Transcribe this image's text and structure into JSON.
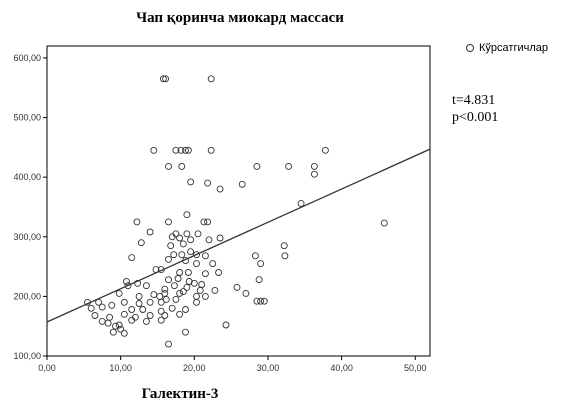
{
  "chart_data": {
    "type": "scatter",
    "title": "Чап қоринча миокард массаси",
    "xlabel": "Галектин-3",
    "ylabel": "",
    "xlim": [
      0,
      52
    ],
    "ylim": [
      100,
      620
    ],
    "x_ticks": [
      "0,00",
      "10,00",
      "20,00",
      "30,00",
      "40,00",
      "50,00"
    ],
    "y_ticks": [
      "100,00",
      "200,00",
      "300,00",
      "400,00",
      "500,00",
      "600,00"
    ],
    "grid": false,
    "legend_position": "top-right",
    "series": [
      {
        "name": "Кўрсатгичлар",
        "points": [
          [
            15.8,
            565
          ],
          [
            16.1,
            565
          ],
          [
            22.3,
            565
          ],
          [
            14.5,
            445
          ],
          [
            17.5,
            445
          ],
          [
            18.2,
            445
          ],
          [
            18.8,
            445
          ],
          [
            19.2,
            445
          ],
          [
            22.3,
            445
          ],
          [
            37.8,
            445
          ],
          [
            16.5,
            418
          ],
          [
            18.3,
            418
          ],
          [
            28.5,
            418
          ],
          [
            32.8,
            418
          ],
          [
            36.3,
            418
          ],
          [
            36.3,
            405
          ],
          [
            19.5,
            392
          ],
          [
            21.8,
            390
          ],
          [
            26.5,
            388
          ],
          [
            23.5,
            380
          ],
          [
            34.5,
            356
          ],
          [
            19.0,
            337
          ],
          [
            12.2,
            325
          ],
          [
            16.5,
            325
          ],
          [
            21.3,
            325
          ],
          [
            21.8,
            325
          ],
          [
            45.8,
            323
          ],
          [
            14.0,
            308
          ],
          [
            17.5,
            305
          ],
          [
            19.0,
            305
          ],
          [
            20.5,
            305
          ],
          [
            12.8,
            290
          ],
          [
            17.0,
            300
          ],
          [
            18.0,
            298
          ],
          [
            19.5,
            295
          ],
          [
            22.0,
            295
          ],
          [
            23.5,
            298
          ],
          [
            16.8,
            285
          ],
          [
            18.5,
            288
          ],
          [
            32.2,
            285
          ],
          [
            17.2,
            270
          ],
          [
            18.3,
            270
          ],
          [
            19.5,
            275
          ],
          [
            20.3,
            270
          ],
          [
            21.5,
            268
          ],
          [
            28.3,
            268
          ],
          [
            32.3,
            268
          ],
          [
            11.5,
            265
          ],
          [
            16.5,
            262
          ],
          [
            18.8,
            260
          ],
          [
            20.3,
            255
          ],
          [
            22.5,
            255
          ],
          [
            29.0,
            255
          ],
          [
            14.8,
            245
          ],
          [
            15.5,
            245
          ],
          [
            18.0,
            240
          ],
          [
            19.2,
            240
          ],
          [
            21.5,
            238
          ],
          [
            23.3,
            240
          ],
          [
            10.8,
            225
          ],
          [
            12.3,
            222
          ],
          [
            16.5,
            228
          ],
          [
            17.8,
            230
          ],
          [
            19.3,
            225
          ],
          [
            20.0,
            222
          ],
          [
            21.0,
            220
          ],
          [
            28.8,
            228
          ],
          [
            11.0,
            218
          ],
          [
            13.5,
            218
          ],
          [
            16.0,
            212
          ],
          [
            17.3,
            218
          ],
          [
            19.0,
            215
          ],
          [
            20.8,
            210
          ],
          [
            22.8,
            210
          ],
          [
            25.8,
            215
          ],
          [
            27.0,
            205
          ],
          [
            9.8,
            205
          ],
          [
            12.5,
            200
          ],
          [
            14.5,
            203
          ],
          [
            15.3,
            200
          ],
          [
            16.0,
            205
          ],
          [
            18.0,
            205
          ],
          [
            18.5,
            208
          ],
          [
            20.3,
            200
          ],
          [
            21.5,
            200
          ],
          [
            5.5,
            190
          ],
          [
            7.0,
            190
          ],
          [
            8.8,
            185
          ],
          [
            10.5,
            190
          ],
          [
            12.5,
            188
          ],
          [
            14.0,
            190
          ],
          [
            15.5,
            190
          ],
          [
            16.2,
            195
          ],
          [
            17.5,
            195
          ],
          [
            20.3,
            190
          ],
          [
            28.5,
            192
          ],
          [
            29.0,
            192
          ],
          [
            29.5,
            192
          ],
          [
            6.0,
            180
          ],
          [
            7.5,
            182
          ],
          [
            11.5,
            178
          ],
          [
            13.0,
            178
          ],
          [
            15.5,
            175
          ],
          [
            17.0,
            180
          ],
          [
            18.8,
            178
          ],
          [
            6.5,
            168
          ],
          [
            8.5,
            165
          ],
          [
            10.5,
            170
          ],
          [
            12.0,
            165
          ],
          [
            14.0,
            168
          ],
          [
            16.0,
            168
          ],
          [
            18.0,
            170
          ],
          [
            7.5,
            158
          ],
          [
            8.3,
            155
          ],
          [
            9.3,
            150
          ],
          [
            9.8,
            152
          ],
          [
            11.5,
            160
          ],
          [
            13.5,
            158
          ],
          [
            15.5,
            160
          ],
          [
            9.0,
            140
          ],
          [
            10.0,
            145
          ],
          [
            10.5,
            138
          ],
          [
            18.8,
            140
          ],
          [
            24.3,
            152
          ],
          [
            16.5,
            120
          ]
        ]
      }
    ],
    "fit_line": {
      "x": [
        0,
        52
      ],
      "y": [
        157,
        447
      ]
    },
    "annotations": [
      "t=4.831",
      "p<0.001"
    ]
  }
}
